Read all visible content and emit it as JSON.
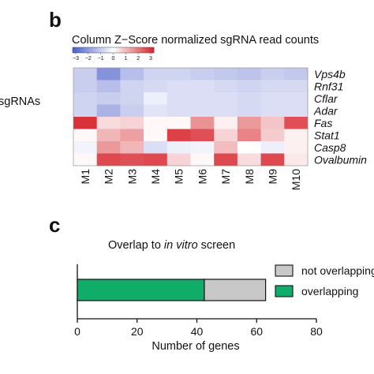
{
  "panels": {
    "b": {
      "letter": "b"
    },
    "c": {
      "letter": "c"
    }
  },
  "chart_data": [
    {
      "type": "heatmap",
      "title": "Column Z−Score normalized sgRNA read counts",
      "ylabel": "sgRNAs",
      "xlabel": "",
      "colorbar": {
        "ticks": [
          "−3",
          "−2",
          "−1",
          "0",
          "1",
          "2",
          "3"
        ],
        "range": [
          -3,
          3
        ],
        "low_color": "#4a5cc8",
        "mid_color": "#ffffff",
        "high_color": "#d6242b"
      },
      "columns": [
        "M1",
        "M2",
        "M3",
        "M4",
        "M5",
        "M6",
        "M7",
        "M8",
        "M9",
        "M10"
      ],
      "rows": [
        "Vps4b",
        "Rnf31",
        "Cflar",
        "Adar",
        "Fas",
        "Stat1",
        "Casp8",
        "Ovalbumin"
      ],
      "values": [
        [
          -0.9,
          -2.0,
          -1.2,
          -0.8,
          -0.8,
          -0.9,
          -1.0,
          -1.1,
          -0.9,
          -1.0
        ],
        [
          -0.9,
          -1.2,
          -0.8,
          -0.7,
          -0.6,
          -0.6,
          -0.7,
          -0.8,
          -0.7,
          -0.7
        ],
        [
          -0.8,
          -0.9,
          -0.8,
          -0.3,
          -0.6,
          -0.6,
          -0.6,
          -0.7,
          -0.6,
          -0.6
        ],
        [
          -0.8,
          -1.4,
          -0.9,
          -0.5,
          -0.6,
          -0.6,
          -0.6,
          -0.7,
          -0.6,
          -0.6
        ],
        [
          2.8,
          0.5,
          0.6,
          0.1,
          0.1,
          1.5,
          0.2,
          1.4,
          0.8,
          2.4
        ],
        [
          0.1,
          1.0,
          1.3,
          0.1,
          2.6,
          2.4,
          0.6,
          1.7,
          0.7,
          0.2
        ],
        [
          -0.2,
          1.4,
          1.0,
          -0.6,
          -0.3,
          -0.2,
          0.9,
          0.0,
          -0.3,
          0.2
        ],
        [
          0.1,
          2.5,
          2.4,
          2.5,
          0.6,
          0.1,
          2.5,
          0.5,
          2.5,
          0.3
        ]
      ]
    },
    {
      "type": "bar",
      "orientation": "horizontal",
      "stacked": true,
      "title_prefix": "Overlap to ",
      "title_italic": "in vitro",
      "title_suffix": " screen",
      "xlabel": "Number of genes",
      "ylabel": "",
      "xlim": [
        0,
        80
      ],
      "xticks": [
        0,
        20,
        40,
        60,
        80
      ],
      "series": [
        {
          "name": "overlapping",
          "values": [
            42.5
          ],
          "color": "#10ad6a"
        },
        {
          "name": "not overlapping",
          "values": [
            20.5
          ],
          "color": "#c8c8c8"
        }
      ],
      "legend": "right"
    }
  ]
}
